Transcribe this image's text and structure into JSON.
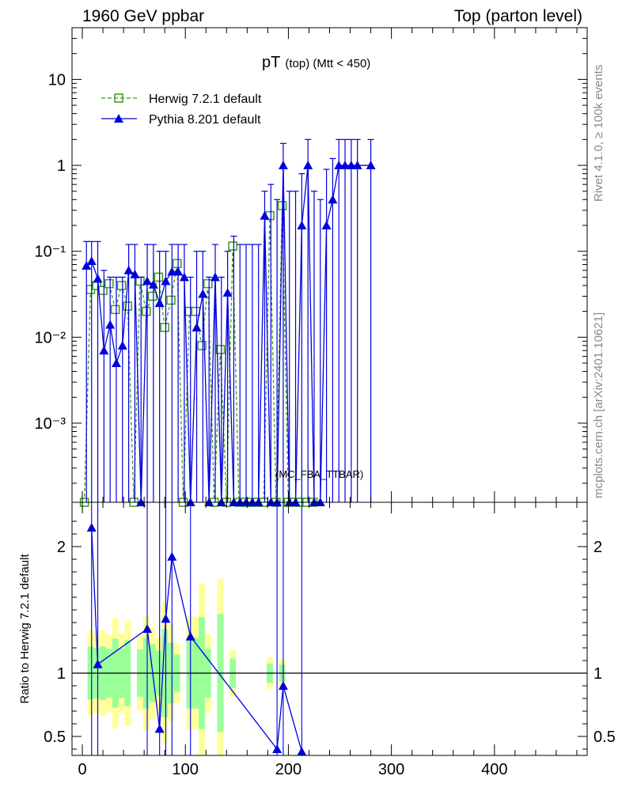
{
  "header": {
    "left": "1960 GeV ppbar",
    "right": "Top (parton level)"
  },
  "side_labels": {
    "rivet": "Rivet 4.1.0, ≥ 100k events",
    "mcplots": "mcplots.cern.ch [arXiv:2401.10621]"
  },
  "watermark": "(MC_FBA_TTBAR)",
  "chart_data": [
    {
      "type": "line",
      "panel": "main",
      "title": "pT",
      "title_sub": "(top) (Mtt < 450)",
      "xlim": [
        -10,
        490
      ],
      "ylim": [
        0.00012,
        40
      ],
      "log_y": true,
      "y_tick_labels": [
        "10",
        "1",
        "10⁻¹",
        "10⁻²",
        "10⁻³"
      ],
      "y_tick_values": [
        10,
        1,
        0.1,
        0.01,
        0.001
      ],
      "legend_position": "top-left",
      "series": [
        {
          "name": "Herwig 7.2.1 default",
          "color": "#3a9a1a",
          "marker": "open-square",
          "line": "dashed",
          "x": [
            2,
            8,
            14,
            20,
            26,
            32,
            38,
            44,
            50,
            56,
            62,
            68,
            74,
            80,
            86,
            92,
            98,
            104,
            110,
            116,
            122,
            128,
            134,
            140,
            146,
            152,
            158,
            164,
            170,
            176,
            182,
            188,
            194,
            200,
            206,
            212,
            218,
            224
          ],
          "y": [
            0.00012,
            0.036,
            0.04,
            0.035,
            0.042,
            0.021,
            0.04,
            0.023,
            0.00012,
            0.045,
            0.02,
            0.03,
            0.05,
            0.013,
            0.027,
            0.072,
            0.00012,
            0.02,
            0.02,
            0.008,
            0.042,
            0.00012,
            0.0072,
            0.00012,
            0.115,
            0.00012,
            0.00012,
            0.00012,
            0.00012,
            0.00012,
            0.26,
            0.00012,
            0.34,
            0.00012,
            0.00012,
            0.00012,
            0.00012,
            0.00012
          ]
        },
        {
          "name": "Pythia 8.201 default",
          "color": "#0000dd",
          "marker": "filled-triangle",
          "line": "solid",
          "x": [
            4,
            9,
            15,
            21,
            27,
            33,
            39,
            45,
            51,
            57,
            63,
            69,
            75,
            81,
            87,
            93,
            99,
            105,
            111,
            117,
            123,
            129,
            135,
            141,
            147,
            153,
            159,
            165,
            171,
            177,
            183,
            189,
            195,
            201,
            207,
            213,
            219,
            225,
            231,
            237,
            243,
            249,
            255,
            261,
            267,
            280
          ],
          "y": [
            0.068,
            0.077,
            0.048,
            0.007,
            0.014,
            0.005,
            0.008,
            0.06,
            0.054,
            0.00012,
            0.045,
            0.041,
            0.025,
            0.045,
            0.058,
            0.058,
            0.05,
            0.00012,
            0.013,
            0.032,
            0.00012,
            0.05,
            0.00012,
            0.033,
            0.00012,
            0.00012,
            0.00012,
            0.00012,
            0.00012,
            0.26,
            0.00012,
            0.00012,
            1.0,
            0.00012,
            0.00012,
            0.2,
            1.0,
            0.00012,
            0.00012,
            0.2,
            0.4,
            1.0,
            1.0,
            1.0,
            1.0,
            1.0
          ],
          "err_hi": [
            0.13,
            0.13,
            0.13,
            0.06,
            0.05,
            0.05,
            0.05,
            0.12,
            0.12,
            0.05,
            0.12,
            0.12,
            0.1,
            0.1,
            0.12,
            0.12,
            0.12,
            0.05,
            0.1,
            0.1,
            0.05,
            0.12,
            0.05,
            0.1,
            0.15,
            0.12,
            0.12,
            0.12,
            0.12,
            0.5,
            0.6,
            0.4,
            1.8,
            0.5,
            0.5,
            0.8,
            2.0,
            0.5,
            0.4,
            0.9,
            1.2,
            2.0,
            2.0,
            2.0,
            2.0,
            2.0
          ]
        }
      ]
    },
    {
      "type": "line",
      "panel": "ratio",
      "ylabel": "Ratio to Herwig 7.2.1 default",
      "xlim": [
        -10,
        490
      ],
      "ylim": [
        0.35,
        2.35
      ],
      "y_tick_labels": [
        "2",
        "1",
        "0.5"
      ],
      "y_tick_values": [
        2,
        1,
        0.5
      ],
      "x_tick_labels": [
        "0",
        "100",
        "200",
        "300",
        "400"
      ],
      "x_tick_values": [
        0,
        100,
        200,
        300,
        400
      ],
      "reference_line": 1,
      "band_colors": {
        "inner": "#99ff99",
        "outer": "#ffff99"
      },
      "series": [
        {
          "name": "Pythia 8.201 default",
          "color": "#0000dd",
          "marker": "filled-triangle",
          "x": [
            9,
            15,
            63,
            75,
            81,
            87,
            105,
            189,
            195,
            213
          ],
          "y": [
            2.15,
            1.07,
            1.35,
            0.56,
            1.43,
            1.92,
            1.29,
            0.4,
            0.9,
            0.38
          ]
        }
      ]
    }
  ]
}
